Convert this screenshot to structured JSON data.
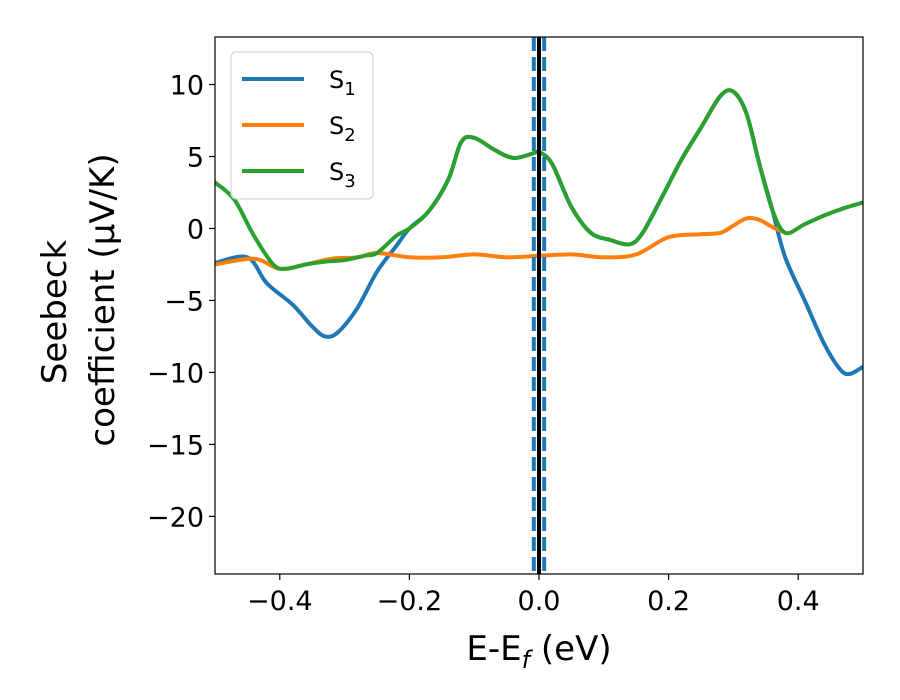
{
  "chart_data": {
    "type": "line",
    "xlabel": {
      "main": "E-E",
      "sub": "f",
      "suffix": " (eV)"
    },
    "ylabel": {
      "line1": "Seebeck",
      "line2": "coefficient  (μV/K)"
    },
    "xlim": [
      -0.5,
      0.5
    ],
    "ylim": [
      -24,
      13.3
    ],
    "xticks": [
      -0.4,
      -0.2,
      0.0,
      0.2,
      0.4
    ],
    "xtick_labels": [
      "−0.4",
      "−0.2",
      "0.0",
      "0.2",
      "0.4"
    ],
    "yticks": [
      10,
      5,
      0,
      -5,
      -10,
      -15,
      -20
    ],
    "ytick_labels": [
      "10",
      "5",
      "0",
      "−5",
      "−10",
      "−15",
      "−20"
    ],
    "legend_position": "upper-left",
    "vertical_lines": [
      {
        "x": 0.0,
        "style": "solid",
        "color": "#000000"
      },
      {
        "x": -0.008,
        "style": "dashed",
        "color": "#1f77b4"
      },
      {
        "x": 0.008,
        "style": "dashed",
        "color": "#1f77b4"
      }
    ],
    "series": [
      {
        "name": "S",
        "sub": "1",
        "color": "#1f77b4",
        "points": [
          [
            -0.5,
            -2.4
          ],
          [
            -0.45,
            -2.0
          ],
          [
            -0.42,
            -3.8
          ],
          [
            -0.38,
            -5.3
          ],
          [
            -0.35,
            -6.8
          ],
          [
            -0.33,
            -7.5
          ],
          [
            -0.31,
            -7.2
          ],
          [
            -0.28,
            -5.5
          ],
          [
            -0.25,
            -3.0
          ],
          [
            -0.22,
            -1.2
          ],
          [
            -0.2,
            0.0
          ],
          [
            -0.17,
            1.2
          ],
          [
            -0.14,
            3.4
          ],
          [
            -0.12,
            6.0
          ],
          [
            -0.1,
            6.3
          ],
          [
            -0.07,
            5.5
          ],
          [
            -0.04,
            4.9
          ],
          [
            -0.01,
            5.2
          ],
          [
            0.0,
            5.3
          ],
          [
            0.02,
            4.5
          ],
          [
            0.05,
            1.5
          ],
          [
            0.08,
            -0.3
          ],
          [
            0.11,
            -0.8
          ],
          [
            0.14,
            -1.1
          ],
          [
            0.16,
            -0.3
          ],
          [
            0.19,
            2.2
          ],
          [
            0.22,
            4.8
          ],
          [
            0.25,
            7.0
          ],
          [
            0.28,
            9.2
          ],
          [
            0.3,
            9.5
          ],
          [
            0.32,
            8.0
          ],
          [
            0.34,
            4.5
          ],
          [
            0.36,
            1.3
          ],
          [
            0.38,
            -2.0
          ],
          [
            0.41,
            -5.0
          ],
          [
            0.44,
            -8.0
          ],
          [
            0.465,
            -9.8
          ],
          [
            0.48,
            -10.1
          ],
          [
            0.5,
            -9.6
          ]
        ]
      },
      {
        "name": "S",
        "sub": "2",
        "color": "#ff7f0e",
        "points": [
          [
            -0.5,
            -2.5
          ],
          [
            -0.44,
            -2.1
          ],
          [
            -0.4,
            -2.8
          ],
          [
            -0.36,
            -2.5
          ],
          [
            -0.32,
            -2.1
          ],
          [
            -0.28,
            -2.0
          ],
          [
            -0.25,
            -1.7
          ],
          [
            -0.2,
            -2.0
          ],
          [
            -0.15,
            -2.0
          ],
          [
            -0.1,
            -1.8
          ],
          [
            -0.05,
            -2.0
          ],
          [
            0.0,
            -1.9
          ],
          [
            0.05,
            -1.8
          ],
          [
            0.1,
            -2.0
          ],
          [
            0.15,
            -1.8
          ],
          [
            0.2,
            -0.6
          ],
          [
            0.25,
            -0.4
          ],
          [
            0.28,
            -0.3
          ],
          [
            0.3,
            0.2
          ],
          [
            0.32,
            0.7
          ],
          [
            0.34,
            0.6
          ],
          [
            0.36,
            0.1
          ],
          [
            0.38,
            -0.3
          ]
        ]
      },
      {
        "name": "S",
        "sub": "3",
        "color": "#2ca02c",
        "points": [
          [
            -0.5,
            3.2
          ],
          [
            -0.47,
            2.0
          ],
          [
            -0.44,
            -0.5
          ],
          [
            -0.41,
            -2.5
          ],
          [
            -0.39,
            -2.8
          ],
          [
            -0.36,
            -2.5
          ],
          [
            -0.33,
            -2.3
          ],
          [
            -0.3,
            -2.2
          ],
          [
            -0.27,
            -1.9
          ],
          [
            -0.25,
            -1.7
          ],
          [
            -0.22,
            -0.5
          ],
          [
            -0.2,
            0.0
          ],
          [
            -0.17,
            1.2
          ],
          [
            -0.14,
            3.4
          ],
          [
            -0.12,
            6.0
          ],
          [
            -0.1,
            6.3
          ],
          [
            -0.07,
            5.5
          ],
          [
            -0.04,
            4.9
          ],
          [
            -0.01,
            5.2
          ],
          [
            0.0,
            5.3
          ],
          [
            0.02,
            4.5
          ],
          [
            0.05,
            1.5
          ],
          [
            0.08,
            -0.3
          ],
          [
            0.11,
            -0.8
          ],
          [
            0.14,
            -1.1
          ],
          [
            0.16,
            -0.3
          ],
          [
            0.19,
            2.2
          ],
          [
            0.22,
            4.8
          ],
          [
            0.25,
            7.0
          ],
          [
            0.28,
            9.2
          ],
          [
            0.3,
            9.5
          ],
          [
            0.32,
            8.0
          ],
          [
            0.34,
            4.5
          ],
          [
            0.36,
            1.3
          ],
          [
            0.38,
            -0.3
          ],
          [
            0.41,
            0.3
          ],
          [
            0.44,
            0.9
          ],
          [
            0.47,
            1.4
          ],
          [
            0.5,
            1.8
          ]
        ]
      }
    ]
  }
}
